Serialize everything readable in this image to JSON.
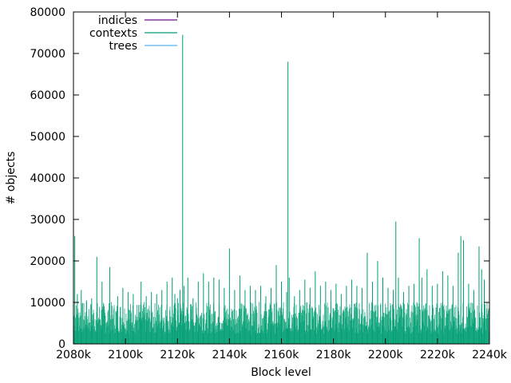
{
  "chart_data": {
    "type": "line",
    "title": "",
    "xlabel": "Block level",
    "ylabel": "# objects",
    "xlim": [
      2080000,
      2240000
    ],
    "ylim": [
      0,
      80000
    ],
    "x_ticks": [
      {
        "value": 2080000,
        "label": "2080k"
      },
      {
        "value": 2100000,
        "label": "2100k"
      },
      {
        "value": 2120000,
        "label": "2120k"
      },
      {
        "value": 2140000,
        "label": "2140k"
      },
      {
        "value": 2160000,
        "label": "2160k"
      },
      {
        "value": 2180000,
        "label": "2180k"
      },
      {
        "value": 2200000,
        "label": "2200k"
      },
      {
        "value": 2220000,
        "label": "2220k"
      },
      {
        "value": 2240000,
        "label": "2240k"
      }
    ],
    "y_ticks": [
      {
        "value": 0,
        "label": "0"
      },
      {
        "value": 10000,
        "label": "10000"
      },
      {
        "value": 20000,
        "label": "20000"
      },
      {
        "value": 30000,
        "label": "30000"
      },
      {
        "value": 40000,
        "label": "40000"
      },
      {
        "value": 50000,
        "label": "50000"
      },
      {
        "value": 60000,
        "label": "60000"
      },
      {
        "value": 70000,
        "label": "70000"
      },
      {
        "value": 80000,
        "label": "80000"
      }
    ],
    "grid": false,
    "legend_position": "top-left",
    "series": [
      {
        "name": "indices",
        "color": "#6a0f8e",
        "points": [
          [
            2080000,
            0
          ],
          [
            2240000,
            0
          ]
        ]
      },
      {
        "name": "contexts",
        "color": "#009e73",
        "points": [
          [
            2080000,
            9000
          ],
          [
            2080500,
            26000
          ],
          [
            2081500,
            12000
          ],
          [
            2083000,
            13000
          ],
          [
            2085000,
            10500
          ],
          [
            2087000,
            11000
          ],
          [
            2089000,
            21000
          ],
          [
            2091000,
            15000
          ],
          [
            2094000,
            18500
          ],
          [
            2097000,
            11500
          ],
          [
            2099000,
            13500
          ],
          [
            2101000,
            12500
          ],
          [
            2103000,
            12000
          ],
          [
            2106000,
            15000
          ],
          [
            2108000,
            11500
          ],
          [
            2110000,
            12500
          ],
          [
            2112000,
            12000
          ],
          [
            2114000,
            13000
          ],
          [
            2116000,
            15000
          ],
          [
            2118000,
            16000
          ],
          [
            2119000,
            12000
          ],
          [
            2120000,
            11000
          ],
          [
            2121000,
            13000
          ],
          [
            2122000,
            74500
          ],
          [
            2122500,
            14000
          ],
          [
            2124000,
            16000
          ],
          [
            2126000,
            11000
          ],
          [
            2128000,
            15000
          ],
          [
            2130000,
            17000
          ],
          [
            2132000,
            15000
          ],
          [
            2134000,
            16000
          ],
          [
            2136000,
            15500
          ],
          [
            2138000,
            13500
          ],
          [
            2140000,
            23000
          ],
          [
            2142000,
            13000
          ],
          [
            2144000,
            16500
          ],
          [
            2146000,
            13000
          ],
          [
            2148000,
            14000
          ],
          [
            2150000,
            13000
          ],
          [
            2152000,
            14000
          ],
          [
            2154000,
            11500
          ],
          [
            2156000,
            13500
          ],
          [
            2158000,
            19000
          ],
          [
            2160000,
            15000
          ],
          [
            2162000,
            12500
          ],
          [
            2162500,
            68000
          ],
          [
            2163000,
            16000
          ],
          [
            2165000,
            11500
          ],
          [
            2167000,
            13000
          ],
          [
            2169000,
            15500
          ],
          [
            2171000,
            13500
          ],
          [
            2173000,
            17500
          ],
          [
            2175000,
            14000
          ],
          [
            2177000,
            15000
          ],
          [
            2179000,
            13000
          ],
          [
            2181000,
            14500
          ],
          [
            2183000,
            12000
          ],
          [
            2185000,
            14000
          ],
          [
            2187000,
            15500
          ],
          [
            2189000,
            14000
          ],
          [
            2191000,
            13500
          ],
          [
            2193000,
            22000
          ],
          [
            2195000,
            15000
          ],
          [
            2197000,
            20000
          ],
          [
            2199000,
            16000
          ],
          [
            2201000,
            13500
          ],
          [
            2203000,
            13000
          ],
          [
            2204000,
            29500
          ],
          [
            2205000,
            16000
          ],
          [
            2207000,
            12500
          ],
          [
            2209000,
            14000
          ],
          [
            2211000,
            14500
          ],
          [
            2213000,
            25500
          ],
          [
            2214000,
            16000
          ],
          [
            2216000,
            18000
          ],
          [
            2218000,
            14000
          ],
          [
            2220000,
            14500
          ],
          [
            2222000,
            17500
          ],
          [
            2224000,
            16500
          ],
          [
            2226000,
            14000
          ],
          [
            2228000,
            22000
          ],
          [
            2229000,
            26000
          ],
          [
            2230000,
            25000
          ],
          [
            2232000,
            14500
          ],
          [
            2234000,
            13000
          ],
          [
            2236000,
            23500
          ],
          [
            2237000,
            18000
          ],
          [
            2238000,
            15500
          ],
          [
            2240000,
            12500
          ]
        ]
      },
      {
        "name": "trees",
        "color": "#56b4e9",
        "points": []
      }
    ]
  }
}
